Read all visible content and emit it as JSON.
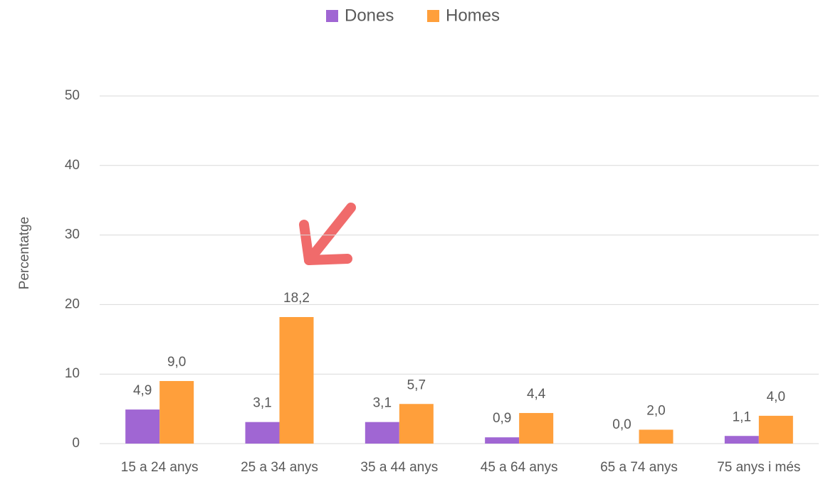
{
  "chart_data": {
    "type": "bar",
    "y_label": "Percentatge",
    "categories": [
      "15 a 24 anys",
      "25 a 34 anys",
      "35 a 44 anys",
      "45 a 64 anys",
      "65 a 74 anys",
      "75 anys i més"
    ],
    "series": [
      {
        "name": "Dones",
        "color": "#a066d3",
        "values": [
          4.9,
          3.1,
          3.1,
          0.9,
          0.0,
          1.1
        ],
        "value_labels": [
          "4,9",
          "3,1",
          "3,1",
          "0,9",
          "0,0",
          "1,1"
        ]
      },
      {
        "name": "Homes",
        "color": "#ff9f3b",
        "values": [
          9.0,
          18.2,
          5.7,
          4.4,
          2.0,
          4.0
        ],
        "value_labels": [
          "9,0",
          "18,2",
          "5,7",
          "4,4",
          "2,0",
          "4,0"
        ]
      }
    ],
    "ylim": [
      0,
      50
    ],
    "yticks": [
      0,
      10,
      20,
      30,
      40,
      50
    ],
    "grid": true,
    "legend": "top"
  }
}
